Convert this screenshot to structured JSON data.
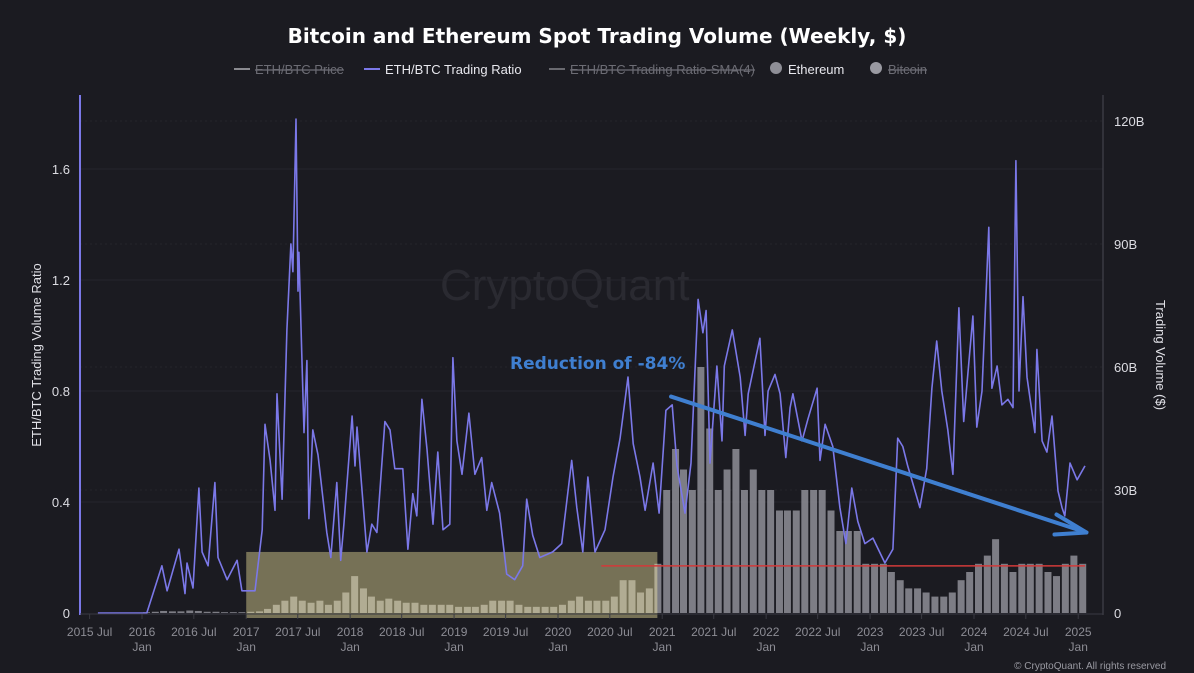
{
  "chart_data": {
    "type": "line",
    "title": "Bitcoin and Ethereum Spot Trading Volume (Weekly, $)",
    "legend": [
      {
        "name": "ETH/BTC Price",
        "color": "#8a8a90",
        "marker": "line",
        "hidden": true
      },
      {
        "name": "ETH/BTC Trading Ratio",
        "color": "#7b78e8",
        "marker": "line",
        "hidden": false
      },
      {
        "name": "ETH/BTC Trading Ratio-SMA(4)",
        "color": "#6a6a70",
        "marker": "line",
        "hidden": true
      },
      {
        "name": "Ethereum",
        "color": "#8e8e96",
        "marker": "dot",
        "hidden": false
      },
      {
        "name": "Bitcoin",
        "color": "#9a9aa2",
        "marker": "dot",
        "hidden": true
      }
    ],
    "legend_position": "top-center",
    "ylabel_left": "ETH/BTC Trading Volume Ratio",
    "ylabel_right": "Trading Volume ($)",
    "ylim_left": [
      0,
      1.87
    ],
    "ylim_right": [
      0,
      125
    ],
    "yticks_left": [
      "0",
      "0.4",
      "0.8",
      "1.2",
      "1.6"
    ],
    "yticks_left_values": [
      0,
      0.4,
      0.8,
      1.2,
      1.6
    ],
    "yticks_right": [
      "0",
      "30B",
      "60B",
      "90B",
      "120B"
    ],
    "yticks_right_values": [
      0,
      30,
      60,
      90,
      120
    ],
    "grid": true,
    "xticks": [
      {
        "date": "2015-07-01",
        "label": "2015 Jul",
        "sub": ""
      },
      {
        "date": "2016-01-01",
        "label": "2016",
        "sub": "Jan"
      },
      {
        "date": "2016-07-01",
        "label": "2016 Jul",
        "sub": ""
      },
      {
        "date": "2017-01-01",
        "label": "2017",
        "sub": "Jan"
      },
      {
        "date": "2017-07-01",
        "label": "2017 Jul",
        "sub": ""
      },
      {
        "date": "2018-01-01",
        "label": "2018",
        "sub": "Jan"
      },
      {
        "date": "2018-07-01",
        "label": "2018 Jul",
        "sub": ""
      },
      {
        "date": "2019-01-01",
        "label": "2019",
        "sub": "Jan"
      },
      {
        "date": "2019-07-01",
        "label": "2019 Jul",
        "sub": ""
      },
      {
        "date": "2020-01-01",
        "label": "2020",
        "sub": "Jan"
      },
      {
        "date": "2020-07-01",
        "label": "2020 Jul",
        "sub": ""
      },
      {
        "date": "2021-01-01",
        "label": "2021",
        "sub": "Jan"
      },
      {
        "date": "2021-07-01",
        "label": "2021 Jul",
        "sub": ""
      },
      {
        "date": "2022-01-01",
        "label": "2022",
        "sub": "Jan"
      },
      {
        "date": "2022-07-01",
        "label": "2022 Jul",
        "sub": ""
      },
      {
        "date": "2023-01-01",
        "label": "2023",
        "sub": "Jan"
      },
      {
        "date": "2023-07-01",
        "label": "2023 Jul",
        "sub": ""
      },
      {
        "date": "2024-01-01",
        "label": "2024",
        "sub": "Jan"
      },
      {
        "date": "2024-07-01",
        "label": "2024 Jul",
        "sub": ""
      },
      {
        "date": "2025-01-01",
        "label": "2025",
        "sub": "Jan"
      }
    ],
    "series": [
      {
        "name": "ETH/BTC Trading Ratio",
        "axis": "left",
        "points": [
          [
            "2015-07-30",
            0.0
          ],
          [
            "2016-01-18",
            0.0
          ],
          [
            "2016-03-11",
            0.17
          ],
          [
            "2016-03-29",
            0.08
          ],
          [
            "2016-05-10",
            0.23
          ],
          [
            "2016-05-31",
            0.07
          ],
          [
            "2016-06-07",
            0.18
          ],
          [
            "2016-06-28",
            0.09
          ],
          [
            "2016-07-19",
            0.45
          ],
          [
            "2016-07-30",
            0.22
          ],
          [
            "2016-08-20",
            0.17
          ],
          [
            "2016-09-13",
            0.47
          ],
          [
            "2016-09-24",
            0.2
          ],
          [
            "2016-10-26",
            0.12
          ],
          [
            "2016-11-30",
            0.19
          ],
          [
            "2016-12-17",
            0.08
          ],
          [
            "2017-02-01",
            0.08
          ],
          [
            "2017-02-26",
            0.3
          ],
          [
            "2017-03-08",
            0.68
          ],
          [
            "2017-03-26",
            0.55
          ],
          [
            "2017-04-12",
            0.37
          ],
          [
            "2017-04-19",
            0.79
          ],
          [
            "2017-05-07",
            0.41
          ],
          [
            "2017-05-24",
            1.02
          ],
          [
            "2017-06-07",
            1.33
          ],
          [
            "2017-06-14",
            1.23
          ],
          [
            "2017-06-25",
            1.78
          ],
          [
            "2017-07-02",
            1.16
          ],
          [
            "2017-07-05",
            1.3
          ],
          [
            "2017-07-23",
            0.65
          ],
          [
            "2017-08-02",
            0.91
          ],
          [
            "2017-08-09",
            0.34
          ],
          [
            "2017-08-23",
            0.66
          ],
          [
            "2017-09-10",
            0.57
          ],
          [
            "2017-10-11",
            0.29
          ],
          [
            "2017-10-25",
            0.2
          ],
          [
            "2017-11-15",
            0.47
          ],
          [
            "2017-11-29",
            0.19
          ],
          [
            "2017-12-10",
            0.32
          ],
          [
            "2018-01-08",
            0.71
          ],
          [
            "2018-01-18",
            0.53
          ],
          [
            "2018-01-25",
            0.67
          ],
          [
            "2018-03-01",
            0.22
          ],
          [
            "2018-03-18",
            0.32
          ],
          [
            "2018-04-05",
            0.29
          ],
          [
            "2018-05-03",
            0.69
          ],
          [
            "2018-05-21",
            0.66
          ],
          [
            "2018-06-07",
            0.52
          ],
          [
            "2018-07-05",
            0.52
          ],
          [
            "2018-07-23",
            0.23
          ],
          [
            "2018-08-09",
            0.43
          ],
          [
            "2018-08-23",
            0.35
          ],
          [
            "2018-09-10",
            0.77
          ],
          [
            "2018-09-28",
            0.59
          ],
          [
            "2018-10-19",
            0.32
          ],
          [
            "2018-11-05",
            0.58
          ],
          [
            "2018-11-23",
            0.3
          ],
          [
            "2018-12-17",
            0.32
          ],
          [
            "2018-12-28",
            0.92
          ],
          [
            "2019-01-11",
            0.62
          ],
          [
            "2019-01-29",
            0.5
          ],
          [
            "2019-02-22",
            0.72
          ],
          [
            "2019-03-15",
            0.5
          ],
          [
            "2019-04-08",
            0.56
          ],
          [
            "2019-04-26",
            0.37
          ],
          [
            "2019-05-13",
            0.47
          ],
          [
            "2019-06-10",
            0.36
          ],
          [
            "2019-07-05",
            0.14
          ],
          [
            "2019-08-02",
            0.12
          ],
          [
            "2019-08-30",
            0.17
          ],
          [
            "2019-09-13",
            0.41
          ],
          [
            "2019-10-04",
            0.28
          ],
          [
            "2019-10-29",
            0.2
          ],
          [
            "2019-12-13",
            0.22
          ],
          [
            "2020-01-14",
            0.25
          ],
          [
            "2020-02-18",
            0.55
          ],
          [
            "2020-03-07",
            0.38
          ],
          [
            "2020-03-28",
            0.22
          ],
          [
            "2020-04-15",
            0.49
          ],
          [
            "2020-05-10",
            0.22
          ],
          [
            "2020-06-14",
            0.3
          ],
          [
            "2020-07-12",
            0.49
          ],
          [
            "2020-08-06",
            0.63
          ],
          [
            "2020-09-03",
            0.85
          ],
          [
            "2020-09-21",
            0.61
          ],
          [
            "2020-10-15",
            0.49
          ],
          [
            "2020-11-02",
            0.37
          ],
          [
            "2020-11-30",
            0.54
          ],
          [
            "2020-12-21",
            0.36
          ],
          [
            "2021-01-14",
            0.73
          ],
          [
            "2021-02-05",
            0.75
          ],
          [
            "2021-02-22",
            0.53
          ],
          [
            "2021-03-22",
            0.36
          ],
          [
            "2021-04-12",
            0.54
          ],
          [
            "2021-05-07",
            1.13
          ],
          [
            "2021-05-24",
            1.01
          ],
          [
            "2021-06-04",
            1.09
          ],
          [
            "2021-06-18",
            0.54
          ],
          [
            "2021-07-12",
            0.89
          ],
          [
            "2021-07-30",
            0.62
          ],
          [
            "2021-08-07",
            0.89
          ],
          [
            "2021-09-04",
            1.02
          ],
          [
            "2021-10-02",
            0.85
          ],
          [
            "2021-10-19",
            0.64
          ],
          [
            "2021-10-30",
            0.79
          ],
          [
            "2021-12-10",
            0.99
          ],
          [
            "2021-12-28",
            0.64
          ],
          [
            "2022-01-08",
            0.8
          ],
          [
            "2022-02-01",
            0.86
          ],
          [
            "2022-02-19",
            0.79
          ],
          [
            "2022-03-11",
            0.56
          ],
          [
            "2022-03-26",
            0.74
          ],
          [
            "2022-04-05",
            0.79
          ],
          [
            "2022-05-07",
            0.62
          ],
          [
            "2022-05-28",
            0.7
          ],
          [
            "2022-06-29",
            0.81
          ],
          [
            "2022-07-09",
            0.55
          ],
          [
            "2022-07-27",
            0.68
          ],
          [
            "2022-08-23",
            0.6
          ],
          [
            "2022-09-17",
            0.38
          ],
          [
            "2022-10-08",
            0.25
          ],
          [
            "2022-10-29",
            0.45
          ],
          [
            "2022-11-19",
            0.33
          ],
          [
            "2022-12-14",
            0.25
          ],
          [
            "2023-01-11",
            0.27
          ],
          [
            "2023-02-22",
            0.18
          ],
          [
            "2023-03-22",
            0.23
          ],
          [
            "2023-04-08",
            0.63
          ],
          [
            "2023-04-26",
            0.6
          ],
          [
            "2023-05-13",
            0.53
          ],
          [
            "2023-06-25",
            0.38
          ],
          [
            "2023-07-19",
            0.52
          ],
          [
            "2023-08-06",
            0.81
          ],
          [
            "2023-08-23",
            0.98
          ],
          [
            "2023-09-10",
            0.8
          ],
          [
            "2023-10-01",
            0.66
          ],
          [
            "2023-10-19",
            0.5
          ],
          [
            "2023-11-09",
            1.1
          ],
          [
            "2023-11-26",
            0.69
          ],
          [
            "2023-12-28",
            1.07
          ],
          [
            "2024-01-11",
            0.67
          ],
          [
            "2024-01-29",
            0.8
          ],
          [
            "2024-02-22",
            1.39
          ],
          [
            "2024-03-04",
            0.81
          ],
          [
            "2024-03-22",
            0.89
          ],
          [
            "2024-04-08",
            0.75
          ],
          [
            "2024-04-29",
            0.77
          ],
          [
            "2024-05-17",
            0.74
          ],
          [
            "2024-05-27",
            1.63
          ],
          [
            "2024-06-07",
            0.8
          ],
          [
            "2024-06-21",
            1.14
          ],
          [
            "2024-07-05",
            0.85
          ],
          [
            "2024-08-02",
            0.65
          ],
          [
            "2024-08-09",
            0.95
          ],
          [
            "2024-08-27",
            0.62
          ],
          [
            "2024-09-13",
            0.58
          ],
          [
            "2024-10-01",
            0.71
          ],
          [
            "2024-10-22",
            0.44
          ],
          [
            "2024-11-05",
            0.38
          ],
          [
            "2024-11-15",
            0.35
          ],
          [
            "2024-12-03",
            0.54
          ],
          [
            "2024-12-28",
            0.48
          ],
          [
            "2025-01-25",
            0.53
          ]
        ]
      },
      {
        "name": "Ethereum",
        "axis": "right",
        "unit": "B",
        "start_month": "2016-01",
        "values": [
          0.2,
          0.3,
          0.5,
          0.4,
          0.4,
          0.6,
          0.5,
          0.3,
          0.3,
          0.2,
          0.2,
          0.2,
          0.3,
          0.4,
          1,
          2,
          3,
          4,
          3,
          2.5,
          3,
          2,
          3,
          5,
          9,
          6,
          4,
          3,
          3.5,
          3,
          2.5,
          2.5,
          2,
          2,
          2,
          2,
          1.5,
          1.5,
          1.5,
          2,
          3,
          3,
          3,
          2,
          1.5,
          1.5,
          1.5,
          1.5,
          2,
          3,
          4,
          3,
          3,
          3,
          4,
          8,
          8,
          5,
          6,
          12,
          30,
          40,
          35,
          30,
          60,
          45,
          30,
          35,
          40,
          30,
          35,
          30,
          30,
          25,
          25,
          25,
          30,
          30,
          30,
          25,
          20,
          20,
          20,
          12,
          12,
          12,
          10,
          8,
          6,
          6,
          5,
          4,
          4,
          5,
          8,
          10,
          12,
          14,
          18,
          12,
          10,
          12,
          12,
          12,
          10,
          9,
          12,
          14,
          12
        ]
      }
    ],
    "annotations": {
      "text": "Reduction of -84%",
      "arrow": {
        "from": [
          "2021-02-01",
          0.78
        ],
        "to": [
          "2025-01-30",
          0.29
        ],
        "color": "#3f7fd0"
      },
      "highlight_box": {
        "from": "2017-01-01",
        "to": "2020-12-15",
        "top": 0.22,
        "color": "#fff3a8"
      },
      "red_line": {
        "from": "2020-06-01",
        "to": "2025-01-25",
        "value_right": 11.5,
        "color": "#d23a3a"
      }
    },
    "watermark": "CryptoQuant",
    "copyright": "© CryptoQuant. All rights reserved"
  }
}
